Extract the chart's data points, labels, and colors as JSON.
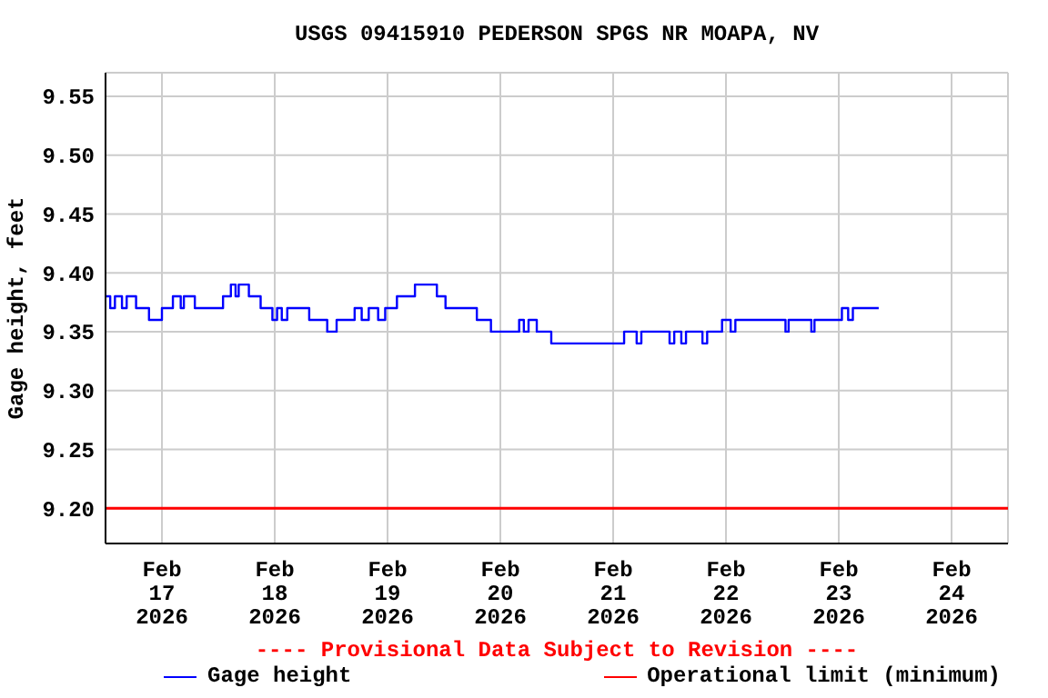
{
  "chart_data": {
    "type": "step",
    "title": "USGS 09415910 PEDERSON SPGS NR MOAPA, NV",
    "ylabel": "Gage height, feet",
    "annotations": [
      "---- Provisional Data Subject to Revision ----"
    ],
    "x": [
      "2026-02-16T12:00",
      "2026-02-16T13:00",
      "2026-02-16T14:00",
      "2026-02-16T15:30",
      "2026-02-16T16:30",
      "2026-02-16T18:30",
      "2026-02-16T21:15",
      "2026-02-17T00:00",
      "2026-02-17T02:20",
      "2026-02-17T04:00",
      "2026-02-17T04:40",
      "2026-02-17T07:00",
      "2026-02-17T13:00",
      "2026-02-17T14:40",
      "2026-02-17T15:40",
      "2026-02-17T16:20",
      "2026-02-17T18:30",
      "2026-02-17T21:00",
      "2026-02-17T23:30",
      "2026-02-18T00:30",
      "2026-02-18T01:30",
      "2026-02-18T02:40",
      "2026-02-18T07:20",
      "2026-02-18T11:10",
      "2026-02-18T13:10",
      "2026-02-18T17:00",
      "2026-02-18T18:30",
      "2026-02-18T20:00",
      "2026-02-18T22:00",
      "2026-02-18T23:30",
      "2026-02-19T02:00",
      "2026-02-19T05:50",
      "2026-02-19T10:30",
      "2026-02-19T12:20",
      "2026-02-19T19:00",
      "2026-02-19T22:00",
      "2026-02-20T04:00",
      "2026-02-20T05:00",
      "2026-02-20T06:00",
      "2026-02-20T07:45",
      "2026-02-20T10:50",
      "2026-02-21T02:20",
      "2026-02-21T05:00",
      "2026-02-21T06:00",
      "2026-02-21T12:00",
      "2026-02-21T13:00",
      "2026-02-21T14:30",
      "2026-02-21T15:30",
      "2026-02-21T19:00",
      "2026-02-21T20:00",
      "2026-02-21T23:10",
      "2026-02-22T01:00",
      "2026-02-22T02:00",
      "2026-02-22T12:40",
      "2026-02-22T13:20",
      "2026-02-22T18:10",
      "2026-02-22T18:50",
      "2026-02-23T00:40",
      "2026-02-23T02:00",
      "2026-02-23T03:00",
      "2026-02-23T08:30"
    ],
    "series": [
      {
        "name": "Gage height",
        "color": "#0000ff",
        "values": [
          9.38,
          9.37,
          9.38,
          9.37,
          9.38,
          9.37,
          9.36,
          9.37,
          9.38,
          9.37,
          9.38,
          9.37,
          9.38,
          9.39,
          9.38,
          9.39,
          9.38,
          9.37,
          9.36,
          9.37,
          9.36,
          9.37,
          9.36,
          9.35,
          9.36,
          9.37,
          9.36,
          9.37,
          9.36,
          9.37,
          9.38,
          9.39,
          9.38,
          9.37,
          9.36,
          9.35,
          9.36,
          9.35,
          9.36,
          9.35,
          9.34,
          9.35,
          9.34,
          9.35,
          9.34,
          9.35,
          9.34,
          9.35,
          9.34,
          9.35,
          9.36,
          9.35,
          9.36,
          9.35,
          9.36,
          9.35,
          9.36,
          9.37,
          9.36,
          9.37,
          9.37
        ]
      }
    ],
    "ref_lines": [
      {
        "axis": "y",
        "value": 9.2,
        "label": "Operational limit (minimum)",
        "color": "#ff0000"
      }
    ],
    "xlim": [
      "2026-02-16T12:00",
      "2026-02-24T12:00"
    ],
    "xticks": [
      {
        "value": "2026-02-17",
        "label": "Feb 17 2026"
      },
      {
        "value": "2026-02-18",
        "label": "Feb 18 2026"
      },
      {
        "value": "2026-02-19",
        "label": "Feb 19 2026"
      },
      {
        "value": "2026-02-20",
        "label": "Feb 20 2026"
      },
      {
        "value": "2026-02-21",
        "label": "Feb 21 2026"
      },
      {
        "value": "2026-02-22",
        "label": "Feb 22 2026"
      },
      {
        "value": "2026-02-23",
        "label": "Feb 23 2026"
      },
      {
        "value": "2026-02-24",
        "label": "Feb 24 2026"
      }
    ],
    "ylim": [
      9.17,
      9.57
    ],
    "yticks": [
      {
        "value": 9.2,
        "label": "9.20"
      },
      {
        "value": 9.25,
        "label": "9.25"
      },
      {
        "value": 9.3,
        "label": "9.30"
      },
      {
        "value": 9.35,
        "label": "9.35"
      },
      {
        "value": 9.4,
        "label": "9.40"
      },
      {
        "value": 9.45,
        "label": "9.45"
      },
      {
        "value": 9.5,
        "label": "9.50"
      },
      {
        "value": 9.55,
        "label": "9.55"
      }
    ],
    "grid": true,
    "legend": "bottom",
    "line_style": "solid",
    "marker": "none"
  }
}
